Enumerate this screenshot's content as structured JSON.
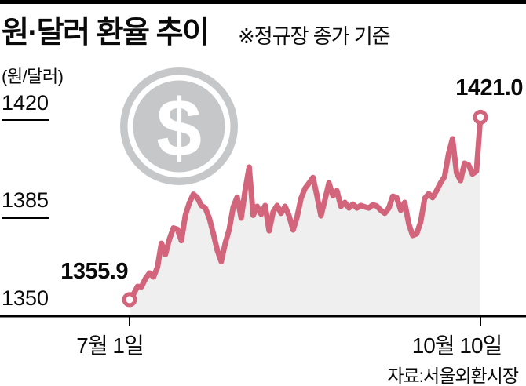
{
  "header": {
    "title": "원·달러 환율 추이",
    "note": "※정규장 종가 기준"
  },
  "chart": {
    "unit_label": "(원/달러)",
    "y_ticks": [
      "1420",
      "1385",
      "1350"
    ],
    "x_labels": [
      "7월 1일",
      "10월 10일"
    ],
    "start_value_label": "1355.9",
    "end_value_label": "1421.0",
    "source": "자료:서울외환시장"
  },
  "icons": {
    "dollar_coin": "dollar-coin-icon",
    "dollar_symbol": "$"
  },
  "colors": {
    "line": "#d2657b",
    "area_fill": "#efefef",
    "marker_fill": "#ffffff",
    "coin_gray": "#c6c7c9",
    "coin_inner": "#ffffff",
    "axis_black": "#000000"
  },
  "chart_data": {
    "type": "area",
    "title": "원·달러 환율 추이",
    "subtitle": "※정규장 종가 기준",
    "ylabel": "(원/달러)",
    "ylim": [
      1350,
      1420
    ],
    "yticks": [
      1350,
      1385,
      1420
    ],
    "grid": "off",
    "legend": "none",
    "x_range_labels": [
      "7월 1일",
      "10월 10일"
    ],
    "first_point": {
      "label": "7월 1일",
      "value": 1355.9
    },
    "last_point": {
      "label": "10월 10일",
      "value": 1421.0
    },
    "source": "자료:서울외환시장",
    "values": [
      1355.9,
      1357.9,
      1360.6,
      1360.5,
      1363.4,
      1365.4,
      1364.0,
      1367.5,
      1376.0,
      1372.0,
      1377.5,
      1381.5,
      1381.0,
      1377.0,
      1386.0,
      1390.5,
      1393.5,
      1392.3,
      1389.5,
      1388.6,
      1385.0,
      1379.5,
      1373.5,
      1369.5,
      1376.0,
      1381.0,
      1389.0,
      1392.5,
      1385.0,
      1395.0,
      1403.2,
      1386.0,
      1389.2,
      1386.4,
      1389.5,
      1380.5,
      1387.2,
      1389.5,
      1386.7,
      1389.2,
      1385.8,
      1380.8,
      1385.3,
      1392.0,
      1395.6,
      1397.5,
      1399.5,
      1393.0,
      1385.8,
      1391.5,
      1397.6,
      1393.0,
      1394.8,
      1389.2,
      1390.6,
      1388.6,
      1390.0,
      1388.6,
      1389.5,
      1389.0,
      1388.6,
      1389.8,
      1389.3,
      1387.8,
      1386.7,
      1388.6,
      1392.8,
      1392.3,
      1387.8,
      1390.6,
      1383.0,
      1378.8,
      1379.4,
      1383.6,
      1392.0,
      1393.7,
      1392.3,
      1394.8,
      1397.6,
      1399.8,
      1408.0,
      1413.3,
      1401.2,
      1398.4,
      1404.6,
      1404.0,
      1400.7,
      1401.8,
      1421.0
    ]
  }
}
